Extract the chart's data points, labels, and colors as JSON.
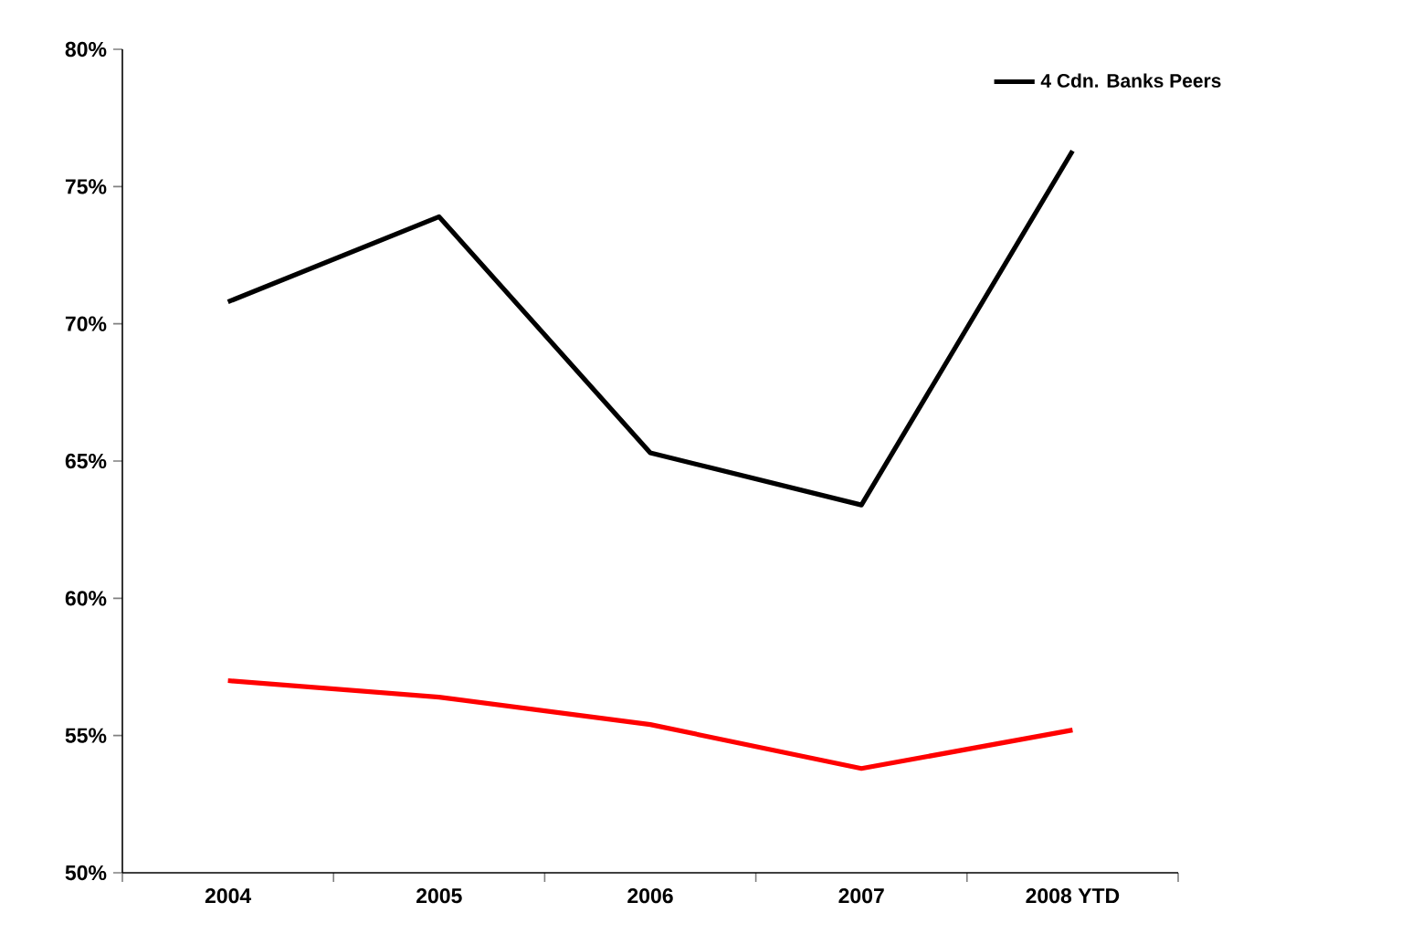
{
  "chart_data": {
    "type": "line",
    "categories": [
      "2004",
      "2005",
      "2006",
      "2007",
      "2008 YTD"
    ],
    "series": [
      {
        "color": "#ff0000",
        "values": [
          57.0,
          56.4,
          55.4,
          53.8,
          55.2
        ]
      },
      {
        "name": "4 Cdn. Banks Peers",
        "color": "#000000",
        "values": [
          70.8,
          73.9,
          65.3,
          63.4,
          76.3
        ]
      }
    ],
    "ylim": [
      50,
      80
    ],
    "yticks": [
      {
        "value": 50,
        "label": "50%"
      },
      {
        "value": 55,
        "label": "55%"
      },
      {
        "value": 60,
        "label": "60%"
      },
      {
        "value": 65,
        "label": "65%"
      },
      {
        "value": 70,
        "label": "70%"
      },
      {
        "value": 75,
        "label": "75%"
      },
      {
        "value": 80,
        "label": "80%"
      }
    ],
    "legend": "top right",
    "marker": "none",
    "line_style": "solid"
  }
}
